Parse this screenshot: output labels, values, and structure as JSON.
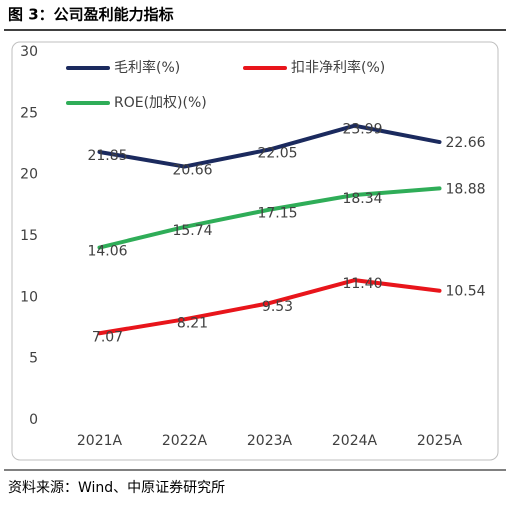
{
  "header": {
    "title": "图 3：公司盈利能力指标"
  },
  "chart_data": {
    "type": "line",
    "categories": [
      "2021A",
      "2022A",
      "2023A",
      "2024A",
      "2025A"
    ],
    "series": [
      {
        "name": "毛利率(%)",
        "color": "#1b2a5e",
        "values": [
          21.85,
          20.66,
          22.05,
          23.99,
          22.66
        ]
      },
      {
        "name": "扣非净利率(%)",
        "color": "#e8151b",
        "values": [
          7.07,
          8.21,
          9.53,
          11.4,
          10.54
        ],
        "value_labels": [
          "7.07",
          "8.21",
          "9.53",
          "11.40",
          "10.54"
        ]
      },
      {
        "name": "ROE(加权)(%)",
        "color": "#2fad58",
        "values": [
          14.06,
          15.74,
          17.15,
          18.34,
          18.88
        ]
      }
    ],
    "ylim": [
      0,
      30
    ],
    "yticks": [
      0,
      5,
      10,
      15,
      20,
      25,
      30
    ],
    "grid": false
  },
  "footer": {
    "source": "资料来源：Wind、中原证券研究所"
  }
}
